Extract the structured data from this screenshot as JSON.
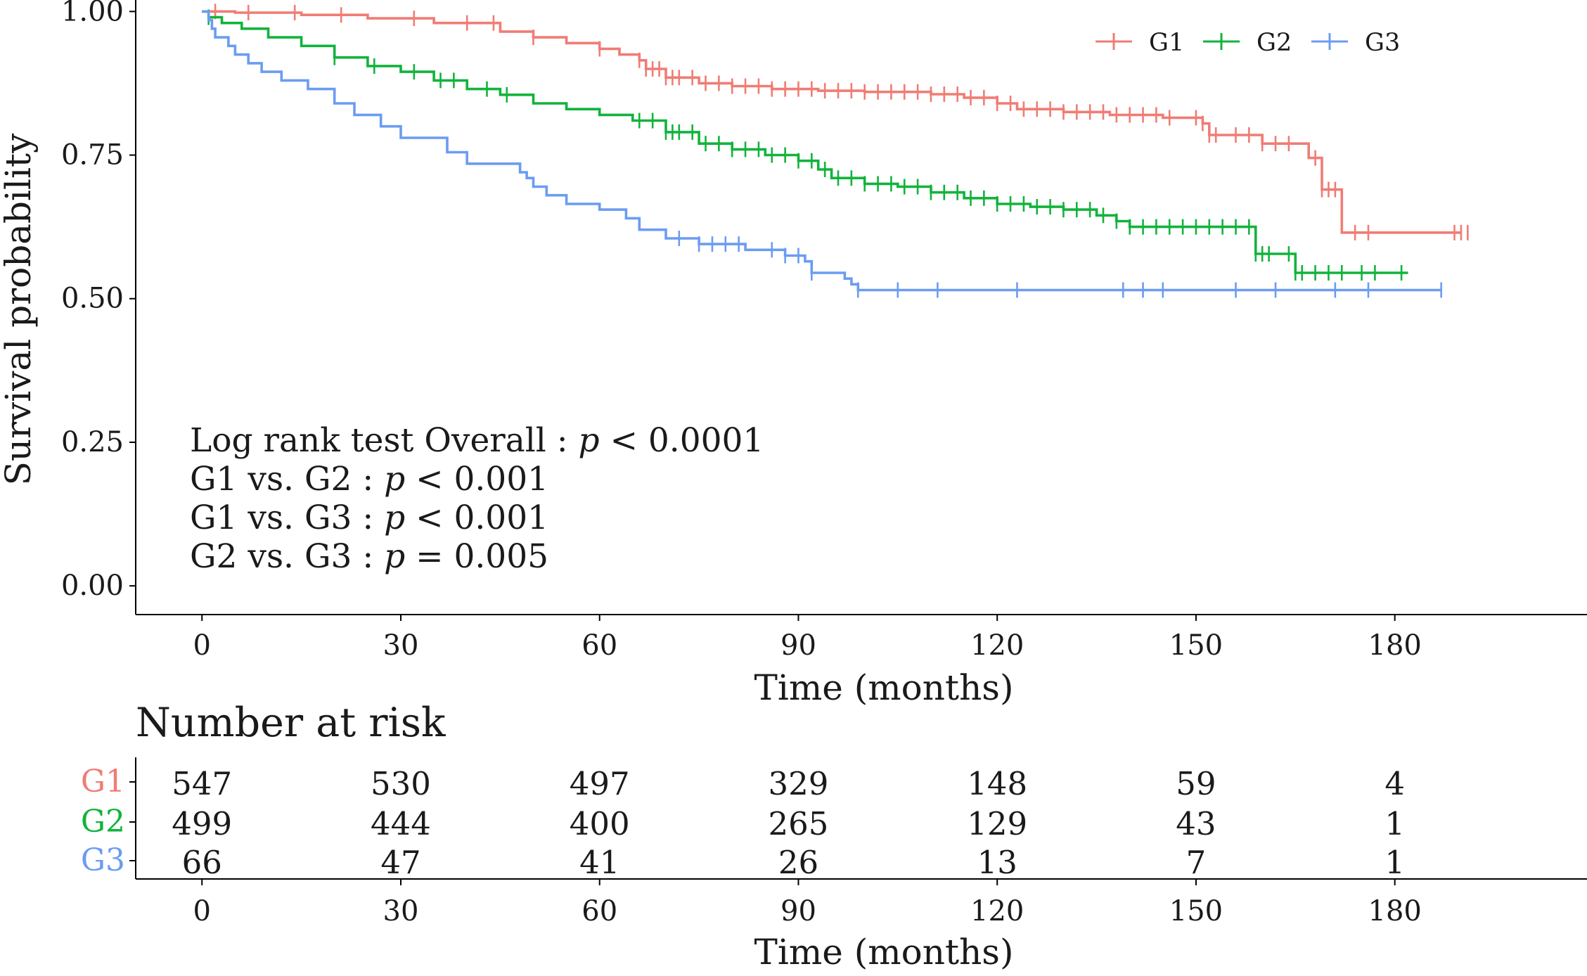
{
  "colors": {
    "G1": "#f07c74",
    "G2": "#12b33c",
    "G3": "#6b9cf2",
    "axis": "#000000"
  },
  "legend": {
    "placement": "top-right",
    "entries": [
      "G1",
      "G2",
      "G3"
    ]
  },
  "annotations": {
    "overall": [
      "Log rank test Overall : ",
      "p",
      " < 0.0001"
    ],
    "g1g2": [
      "G1 vs. G2 : ",
      "p",
      " < 0.001"
    ],
    "g1g3": [
      "G1 vs. G3 : ",
      "p",
      " < 0.001"
    ],
    "g2g3": [
      "G2 vs. G3 : ",
      "p",
      " = 0.005"
    ]
  },
  "risk_table": {
    "title": "Number at risk",
    "xlabel": "Time (months)",
    "times": [
      0,
      30,
      60,
      90,
      120,
      150,
      180
    ],
    "groups": [
      "G1",
      "G2",
      "G3"
    ],
    "rows": [
      {
        "group": "G1",
        "values": [
          "547",
          "530",
          "497",
          "329",
          "148",
          "59",
          "4"
        ]
      },
      {
        "group": "G2",
        "values": [
          "499",
          "444",
          "400",
          "265",
          "129",
          "43",
          "1"
        ]
      },
      {
        "group": "G3",
        "values": [
          "66",
          "47",
          "41",
          "26",
          "13",
          "7",
          "1"
        ]
      }
    ]
  },
  "chart_data": {
    "type": "line",
    "subtype": "kaplan-meier",
    "xlabel": "Time (months)",
    "ylabel": "Survival probability",
    "xticks": [
      0,
      30,
      60,
      90,
      120,
      150,
      180
    ],
    "yticks": [
      "0.00",
      "0.25",
      "0.50",
      "0.75",
      "1.00"
    ],
    "xlim": [
      -10,
      209
    ],
    "ylim": [
      -0.05,
      1.02
    ],
    "grid": false,
    "series": [
      {
        "name": "G1",
        "color": "#f07c74",
        "x": [
          0,
          5,
          15,
          25,
          35,
          45,
          50,
          55,
          60,
          63,
          66,
          67,
          70,
          75,
          80,
          86,
          93,
          100,
          110,
          115,
          120,
          123,
          130,
          137,
          145,
          151,
          152,
          160,
          166,
          167,
          169,
          172,
          190
        ],
        "y": [
          1.0,
          0.998,
          0.994,
          0.988,
          0.98,
          0.965,
          0.955,
          0.945,
          0.935,
          0.925,
          0.915,
          0.9,
          0.885,
          0.875,
          0.87,
          0.865,
          0.862,
          0.86,
          0.856,
          0.85,
          0.84,
          0.83,
          0.825,
          0.82,
          0.815,
          0.805,
          0.785,
          0.77,
          0.77,
          0.745,
          0.69,
          0.615,
          0.615
        ],
        "censor": [
          2,
          7,
          14,
          21,
          32,
          40,
          44,
          50,
          60,
          66,
          67,
          68,
          69,
          70,
          71,
          72,
          74,
          76,
          78,
          80,
          82,
          84,
          86,
          88,
          90,
          92,
          94,
          96,
          98,
          100,
          102,
          104,
          106,
          108,
          110,
          112,
          114,
          116,
          118,
          120,
          122,
          124,
          126,
          128,
          130,
          132,
          134,
          136,
          138,
          140,
          142,
          144,
          146,
          150,
          151,
          152,
          153,
          156,
          158,
          160,
          162,
          164,
          168,
          169,
          170,
          171,
          174,
          176,
          189,
          190,
          191
        ]
      },
      {
        "name": "G2",
        "color": "#12b33c",
        "x": [
          0,
          1,
          3,
          6,
          10,
          15,
          20,
          25,
          30,
          35,
          40,
          45,
          50,
          55,
          60,
          65,
          70,
          75,
          80,
          85,
          90,
          93,
          95,
          100,
          105,
          110,
          115,
          120,
          125,
          130,
          135,
          138,
          140,
          148,
          158,
          159,
          164,
          165,
          182
        ],
        "y": [
          1.0,
          0.99,
          0.98,
          0.97,
          0.955,
          0.94,
          0.92,
          0.905,
          0.895,
          0.88,
          0.865,
          0.855,
          0.84,
          0.83,
          0.82,
          0.81,
          0.79,
          0.77,
          0.76,
          0.75,
          0.74,
          0.725,
          0.71,
          0.7,
          0.695,
          0.685,
          0.675,
          0.665,
          0.66,
          0.655,
          0.645,
          0.635,
          0.625,
          0.625,
          0.625,
          0.578,
          0.578,
          0.545,
          0.545
        ],
        "censor": [
          1,
          20,
          26,
          32,
          36,
          38,
          43,
          46,
          66,
          68,
          70,
          71,
          72,
          74,
          76,
          78,
          80,
          82,
          84,
          86,
          88,
          90,
          92,
          94,
          96,
          98,
          100,
          102,
          104,
          106,
          108,
          110,
          112,
          114,
          116,
          118,
          120,
          122,
          124,
          126,
          128,
          130,
          132,
          134,
          136,
          138,
          140,
          142,
          144,
          146,
          148,
          150,
          152,
          154,
          156,
          158,
          159,
          160,
          161,
          164,
          165,
          166,
          168,
          170,
          172,
          175,
          177,
          181
        ]
      },
      {
        "name": "G3",
        "color": "#6b9cf2",
        "x": [
          0,
          1,
          1.5,
          2,
          4,
          5,
          7,
          9,
          12,
          16,
          20,
          23,
          27,
          30,
          37,
          40,
          48,
          49,
          50,
          52,
          55,
          60,
          64,
          66,
          70,
          75,
          82,
          88,
          91,
          92,
          97,
          98,
          99,
          187
        ],
        "y": [
          1.0,
          0.985,
          0.97,
          0.955,
          0.94,
          0.925,
          0.91,
          0.895,
          0.88,
          0.865,
          0.84,
          0.82,
          0.8,
          0.78,
          0.755,
          0.735,
          0.72,
          0.71,
          0.695,
          0.68,
          0.665,
          0.655,
          0.64,
          0.62,
          0.605,
          0.595,
          0.585,
          0.575,
          0.565,
          0.545,
          0.535,
          0.525,
          0.515,
          0.515
        ],
        "censor": [
          72,
          75,
          77,
          79,
          81,
          86,
          88,
          90,
          92,
          99,
          105,
          111,
          123,
          139,
          142,
          145,
          156,
          162,
          171,
          176,
          187
        ]
      }
    ]
  }
}
